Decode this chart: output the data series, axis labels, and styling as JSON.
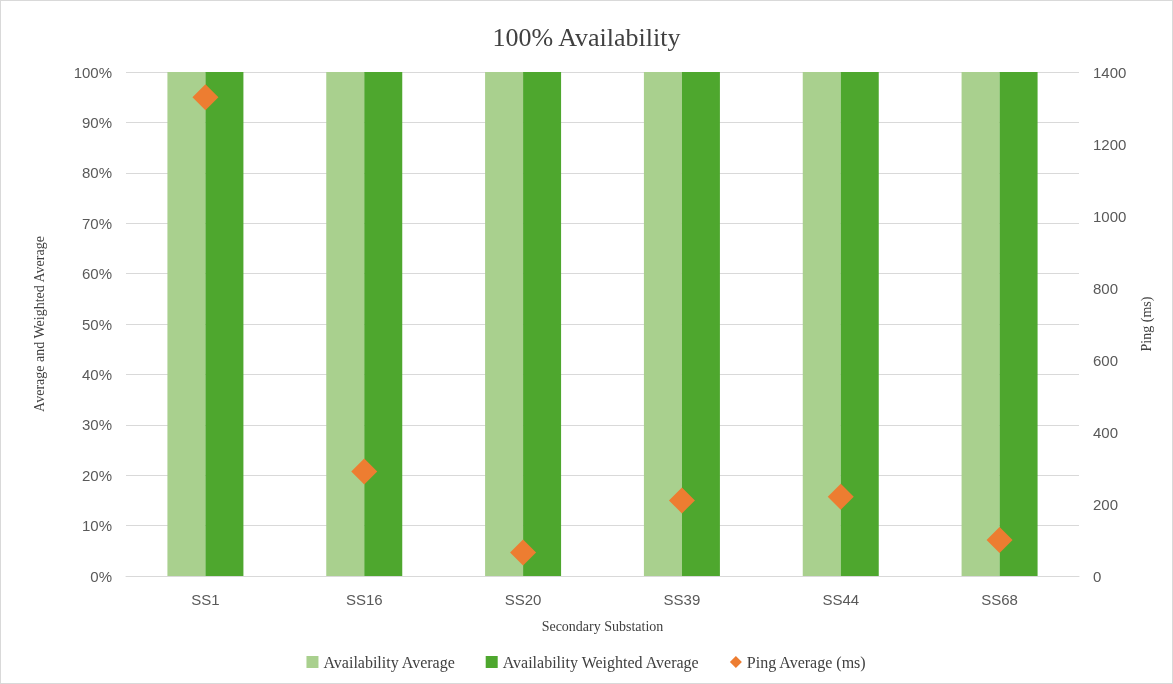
{
  "chart_data": {
    "type": "bar",
    "title": "100% Availability",
    "xlabel": "Secondary Substation",
    "ylabel": "Average and Weighted Average",
    "y2label": "Ping (ms)",
    "categories": [
      "SS1",
      "SS16",
      "SS20",
      "SS39",
      "SS44",
      "SS68"
    ],
    "series": [
      {
        "name": "Availability Average",
        "color": "#a9d08e",
        "values": [
          100,
          100,
          100,
          100,
          100,
          100
        ]
      },
      {
        "name": "Availability Weighted Average",
        "color": "#4ea72e",
        "values": [
          100,
          100,
          100,
          100,
          100,
          100
        ]
      },
      {
        "name": "Ping Average (ms)",
        "type": "scatter",
        "axis": "y2",
        "color": "#ed7d31",
        "marker": "diamond",
        "x": [
          "SS1",
          "SS16",
          "SS20",
          "SS39",
          "SS44",
          "SS68"
        ],
        "values": [
          1330,
          290,
          65,
          210,
          220,
          100
        ]
      }
    ],
    "ylim": [
      0,
      100
    ],
    "yticks": [
      {
        "value": 0,
        "label": "0%"
      },
      {
        "value": 10,
        "label": "10%"
      },
      {
        "value": 20,
        "label": "20%"
      },
      {
        "value": 30,
        "label": "30%"
      },
      {
        "value": 40,
        "label": "40%"
      },
      {
        "value": 50,
        "label": "50%"
      },
      {
        "value": 60,
        "label": "60%"
      },
      {
        "value": 70,
        "label": "70%"
      },
      {
        "value": 80,
        "label": "80%"
      },
      {
        "value": 90,
        "label": "90%"
      },
      {
        "value": 100,
        "label": "100%"
      }
    ],
    "y2lim": [
      0,
      1400
    ],
    "y2ticks": [
      0,
      200,
      400,
      600,
      800,
      1000,
      1200,
      1400
    ],
    "grid": "y",
    "legend": "bottom"
  }
}
